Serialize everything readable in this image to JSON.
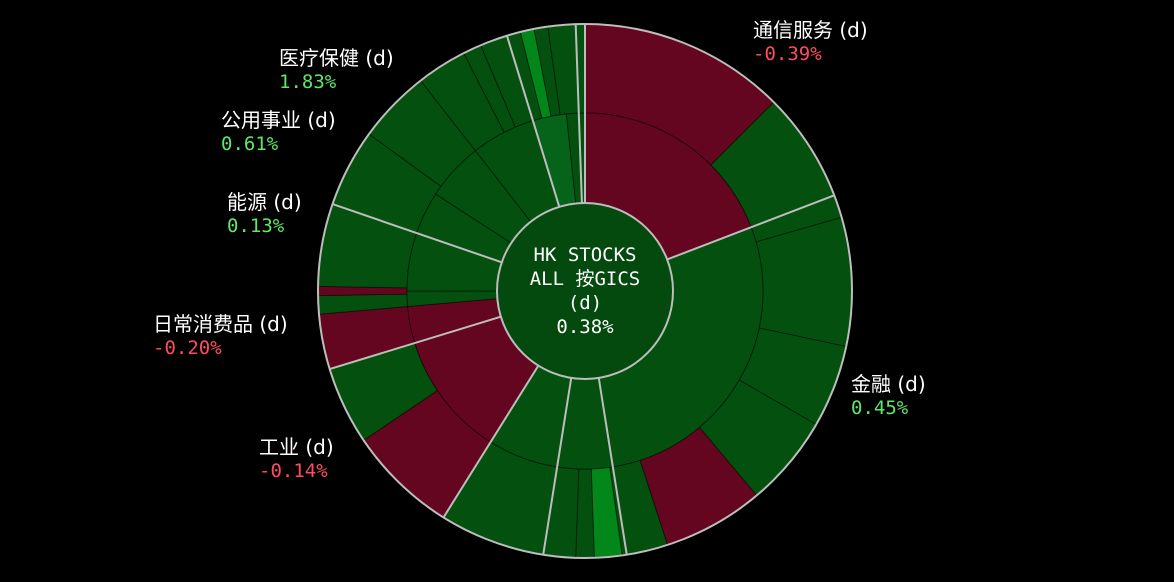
{
  "chart_data": {
    "type": "sunburst",
    "title": "HK STOCKS ALL 按GICS (d)",
    "center": {
      "line1": "HK STOCKS",
      "line2": "ALL 按GICS",
      "line3": "(d)",
      "value": "0.38%"
    },
    "sectors": [
      {
        "name": "通信服务 (d)",
        "change": "-0.39%",
        "direction": "down"
      },
      {
        "name": "金融 (d)",
        "change": "0.45%",
        "direction": "up"
      },
      {
        "name": "工业 (d)",
        "change": "-0.14%",
        "direction": "down"
      },
      {
        "name": "日常消费品 (d)",
        "change": "-0.20%",
        "direction": "down"
      },
      {
        "name": "能源 (d)",
        "change": "0.13%",
        "direction": "up"
      },
      {
        "name": "公用事业 (d)",
        "change": "0.61%",
        "direction": "up"
      },
      {
        "name": "医疗保健 (d)",
        "change": "1.83%",
        "direction": "up"
      }
    ],
    "colors": {
      "background": "#000000",
      "negative": "#650620",
      "positive": "#04510f",
      "positive_bright": "#02871a",
      "positive_mid": "#05641a",
      "center": "#04490d",
      "divider": "#bdbdbd",
      "pos_text": "#5ee86a",
      "neg_text": "#ff4b5e"
    },
    "inner_ring": [
      {
        "start": 0,
        "end": 69,
        "color": "negative"
      },
      {
        "start": 69,
        "end": 171,
        "color": "positive"
      },
      {
        "start": 171,
        "end": 189,
        "color": "positive"
      },
      {
        "start": 189,
        "end": 212,
        "color": "positive"
      },
      {
        "start": 212,
        "end": 253,
        "color": "negative"
      },
      {
        "start": 253,
        "end": 265,
        "color": "negative"
      },
      {
        "start": 265,
        "end": 270,
        "color": "positive"
      },
      {
        "start": 270,
        "end": 289,
        "color": "positive"
      },
      {
        "start": 289,
        "end": 303,
        "color": "positive"
      },
      {
        "start": 303,
        "end": 322,
        "color": "positive"
      },
      {
        "start": 322,
        "end": 343,
        "color": "positive"
      },
      {
        "start": 343,
        "end": 354,
        "color": "positive_mid"
      },
      {
        "start": 354,
        "end": 360,
        "color": "positive"
      }
    ],
    "outer_ring": [
      {
        "start": 0,
        "end": 45,
        "color": "negative"
      },
      {
        "start": 45,
        "end": 74,
        "color": "positive"
      },
      {
        "start": 74,
        "end": 102,
        "color": "positive"
      },
      {
        "start": 102,
        "end": 120,
        "color": "positive"
      },
      {
        "start": 120,
        "end": 140,
        "color": "positive"
      },
      {
        "start": 140,
        "end": 162,
        "color": "negative"
      },
      {
        "start": 162,
        "end": 172,
        "color": "positive"
      },
      {
        "start": 172,
        "end": 178,
        "color": "positive_bright"
      },
      {
        "start": 178,
        "end": 182,
        "color": "positive"
      },
      {
        "start": 182,
        "end": 212,
        "color": "positive"
      },
      {
        "start": 212,
        "end": 236,
        "color": "negative"
      },
      {
        "start": 236,
        "end": 253,
        "color": "positive"
      },
      {
        "start": 253,
        "end": 265,
        "color": "negative"
      },
      {
        "start": 265,
        "end": 269,
        "color": "positive"
      },
      {
        "start": 269,
        "end": 271,
        "color": "negative"
      },
      {
        "start": 271,
        "end": 289,
        "color": "positive"
      },
      {
        "start": 289,
        "end": 306,
        "color": "positive"
      },
      {
        "start": 306,
        "end": 322,
        "color": "positive"
      },
      {
        "start": 322,
        "end": 333,
        "color": "positive"
      },
      {
        "start": 333,
        "end": 337,
        "color": "positive"
      },
      {
        "start": 337,
        "end": 346,
        "color": "positive"
      },
      {
        "start": 346,
        "end": 349,
        "color": "positive_bright"
      },
      {
        "start": 349,
        "end": 352,
        "color": "positive"
      },
      {
        "start": 352,
        "end": 358,
        "color": "positive"
      },
      {
        "start": 358,
        "end": 360,
        "color": "positive"
      }
    ]
  }
}
